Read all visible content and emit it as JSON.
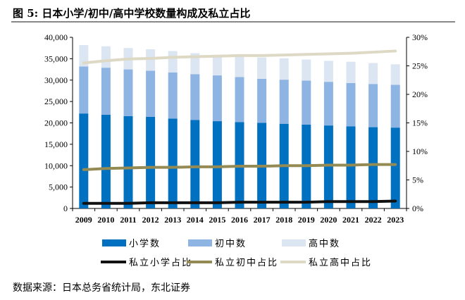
{
  "title": "图 5: 日本小学/初中/高中学校数量构成及私立占比",
  "source": "数据来源：日本总务省统计局，东北证券",
  "chart_data": {
    "type": "bar",
    "stacked": true,
    "categories": [
      "2009",
      "2010",
      "2011",
      "2012",
      "2013",
      "2014",
      "2015",
      "2016",
      "2017",
      "2018",
      "2019",
      "2020",
      "2021",
      "2022",
      "2023"
    ],
    "left_axis": {
      "ylim": [
        0,
        40000
      ],
      "ticks": [
        "0",
        "5,000",
        "10,000",
        "15,000",
        "20,000",
        "25,000",
        "30,000",
        "35,000",
        "40,000"
      ]
    },
    "right_axis": {
      "ylim": [
        0,
        30
      ],
      "ticks": [
        "0%",
        "5%",
        "10%",
        "15%",
        "20%",
        "25%",
        "30%"
      ]
    },
    "series": [
      {
        "name": "小学数",
        "kind": "bar",
        "axis": "left",
        "color": "#0070C0",
        "values": [
          22200,
          21900,
          21600,
          21400,
          21000,
          20700,
          20400,
          20200,
          20000,
          19800,
          19600,
          19400,
          19200,
          19000,
          18900
        ]
      },
      {
        "name": "初中数",
        "kind": "bar",
        "axis": "left",
        "color": "#8EB4E3",
        "values": [
          11000,
          11000,
          10900,
          10800,
          10800,
          10700,
          10700,
          10500,
          10300,
          10300,
          10300,
          10200,
          10100,
          10100,
          10000
        ]
      },
      {
        "name": "高中数",
        "kind": "bar",
        "axis": "left",
        "color": "#DCE6F2",
        "values": [
          5000,
          5000,
          5000,
          5000,
          5000,
          4900,
          4800,
          4900,
          5000,
          5000,
          4900,
          4900,
          5000,
          4900,
          4800
        ]
      },
      {
        "name": "私立小学占比",
        "kind": "line",
        "axis": "right",
        "color": "#111111",
        "values": [
          0.9,
          0.9,
          0.9,
          1.0,
          1.0,
          1.0,
          1.0,
          1.1,
          1.1,
          1.1,
          1.1,
          1.2,
          1.2,
          1.2,
          1.3
        ]
      },
      {
        "name": "私立初中占比",
        "kind": "line",
        "axis": "right",
        "color": "#948A54",
        "values": [
          6.8,
          7.0,
          7.1,
          7.2,
          7.2,
          7.3,
          7.3,
          7.4,
          7.4,
          7.5,
          7.5,
          7.6,
          7.6,
          7.7,
          7.7
        ]
      },
      {
        "name": "私立高中占比",
        "kind": "line",
        "axis": "right",
        "color": "#DDD9C4",
        "values": [
          25.5,
          25.9,
          26.2,
          26.3,
          26.5,
          26.6,
          26.7,
          26.8,
          26.8,
          26.9,
          27.0,
          27.1,
          27.2,
          27.4,
          27.6
        ]
      }
    ],
    "legend": "bottom",
    "grid": false
  }
}
